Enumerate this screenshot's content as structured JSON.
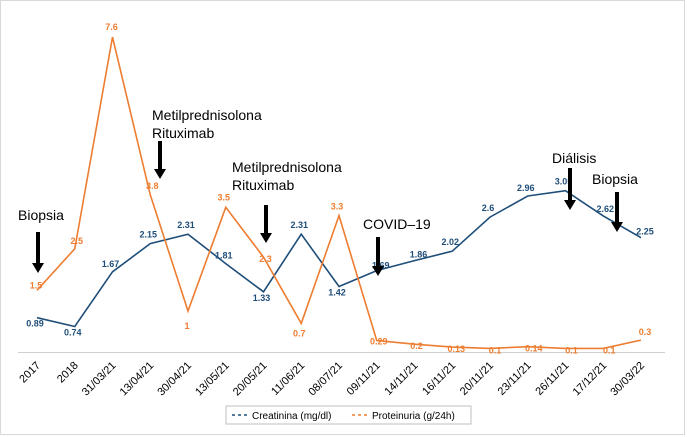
{
  "chart_data": {
    "type": "line",
    "categories": [
      "2017",
      "2018",
      "31/03/21",
      "13/04/21",
      "30/04/21",
      "13/05/21",
      "20/05/21",
      "11/06/21",
      "08/07/21",
      "09/11/21",
      "14/11/21",
      "16/11/21",
      "20/11/21",
      "23/11/21",
      "26/11/21",
      "17/12/21",
      "30/03/22"
    ],
    "series": [
      {
        "name": "Creatinina (mg/dl)",
        "color": "#1f4e79",
        "values": [
          0.89,
          0.74,
          1.67,
          2.15,
          2.31,
          1.81,
          1.33,
          2.31,
          1.42,
          1.69,
          1.86,
          2.02,
          2.6,
          2.96,
          3.05,
          2.62,
          2.25
        ],
        "labels": [
          "0.89",
          "0.74",
          "1.67",
          "2.15",
          "2.31",
          "1.81",
          "1.33",
          "2.31",
          "1.42",
          "1.69",
          "1.86",
          "2.02",
          "2.6",
          "2.96",
          "3.05",
          "2.62",
          "2.25"
        ]
      },
      {
        "name": "Proteinuria (g/24h)",
        "color": "#ed7d31",
        "values": [
          1.5,
          2.5,
          7.6,
          3.8,
          1,
          3.5,
          2.3,
          0.7,
          3.3,
          0.29,
          0.2,
          0.13,
          0.1,
          0.14,
          0.1,
          0.1,
          0.3
        ],
        "labels": [
          "1.5",
          "2.5",
          "7.6",
          "3.8",
          "1",
          "3.5",
          "2.3",
          "0.7",
          "3.3",
          "0.29",
          "0.2",
          "0.13",
          "0.1",
          "0.14",
          "0.1",
          "0.1",
          "0.3"
        ]
      }
    ],
    "annotations": [
      {
        "id": "biopsia-1",
        "lines": [
          "Biopsia"
        ],
        "category_index": 0
      },
      {
        "id": "metil-1",
        "lines": [
          "Metilprednisolona",
          "Rituximab"
        ],
        "category_index": 3
      },
      {
        "id": "metil-2",
        "lines": [
          "Metilprednisolona",
          "Rituximab"
        ],
        "category_index": 6
      },
      {
        "id": "covid",
        "lines": [
          "COVID–19"
        ],
        "category_index": 9
      },
      {
        "id": "dialisis",
        "lines": [
          "Diálisis"
        ],
        "category_index": 14
      },
      {
        "id": "biopsia-2",
        "lines": [
          "Biopsia"
        ],
        "category_index": 15
      }
    ],
    "legend": {
      "position": "bottom",
      "marker": "–",
      "dash": true
    },
    "grid": false
  }
}
